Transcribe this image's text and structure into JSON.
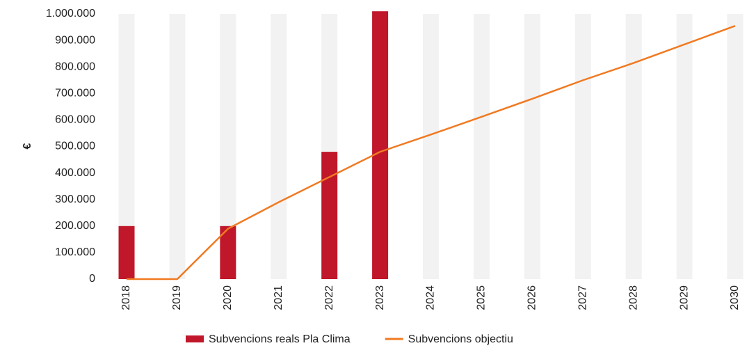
{
  "chart_data": {
    "type": "bar_line",
    "y_label": "€",
    "categories": [
      "2018",
      "2019",
      "2020",
      "2021",
      "2022",
      "2023",
      "2024",
      "2025",
      "2026",
      "2027",
      "2028",
      "2029",
      "2030"
    ],
    "series": [
      {
        "name": "Subvencions reals Pla Clima",
        "type": "bar",
        "color": "#c0172a",
        "values": [
          200000,
          0,
          200000,
          0,
          480000,
          1010000,
          null,
          null,
          null,
          null,
          null,
          null,
          null
        ]
      },
      {
        "name": "Subvencions objectiu",
        "type": "line",
        "color": "#f07a22",
        "values": [
          0,
          0,
          190000,
          290000,
          385000,
          480000,
          545000,
          612000,
          680000,
          750000,
          815000,
          885000,
          955000
        ]
      }
    ],
    "ylim": [
      0,
      1000000
    ],
    "yticks": [
      0,
      {
        "value": 100000,
        "label": "100.000"
      },
      {
        "value": 200000,
        "label": "200.000"
      },
      {
        "value": 300000,
        "label": "300.000"
      },
      {
        "value": 400000,
        "label": "400.000"
      },
      {
        "value": 500000,
        "label": "500.000"
      },
      {
        "value": 600000,
        "label": "600.000"
      },
      {
        "value": 700000,
        "label": "700.000"
      },
      {
        "value": 800000,
        "label": "800.000"
      },
      {
        "value": 900000,
        "label": "900.000"
      },
      {
        "value": 1000000,
        "label": "1.000.000"
      }
    ],
    "band_color": "#f2f2f2"
  }
}
